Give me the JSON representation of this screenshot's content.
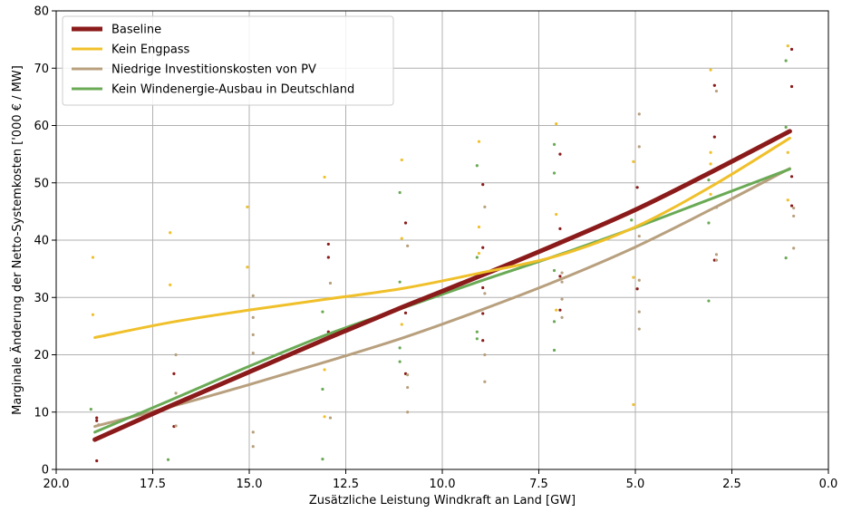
{
  "chart_data": {
    "type": "line",
    "xlabel": "Zusätzliche Leistung Windkraft an Land [GW]",
    "ylabel": "Marginale Änderung der Netto-Systemkosten ['000 € / MW]",
    "xlim": [
      20.0,
      0.0
    ],
    "ylim": [
      0,
      80
    ],
    "x_inverted": true,
    "xticks": [
      "20.0",
      "17.5",
      "15.0",
      "12.5",
      "10.0",
      "7.5",
      "5.0",
      "2.5",
      "0.0"
    ],
    "xtick_values": [
      20,
      17.5,
      15,
      12.5,
      10,
      7.5,
      5,
      2.5,
      0
    ],
    "yticks": [
      "0",
      "10",
      "20",
      "30",
      "40",
      "50",
      "60",
      "70",
      "80"
    ],
    "ytick_values": [
      0,
      10,
      20,
      30,
      40,
      50,
      60,
      70,
      80
    ],
    "grid": true,
    "legend_position": "top-left",
    "series": [
      {
        "name": "Baseline",
        "color": "#8b1a1a",
        "width": 5,
        "line": {
          "x": [
            19,
            17,
            15,
            13,
            11,
            9,
            7,
            5,
            3,
            1
          ],
          "y": [
            5.2,
            11.2,
            17.0,
            22.8,
            28.4,
            33.8,
            39.4,
            45.3,
            52.0,
            59.0
          ]
        },
        "points": [
          {
            "x": 19,
            "y": [
              1.5,
              8.5,
              9.0
            ]
          },
          {
            "x": 17,
            "y": [
              7.5,
              16.7
            ]
          },
          {
            "x": 13,
            "y": [
              24.0,
              37.0,
              39.3
            ]
          },
          {
            "x": 11,
            "y": [
              43.0,
              27.3,
              16.7
            ]
          },
          {
            "x": 9,
            "y": [
              49.7,
              38.7,
              31.7,
              22.5,
              27.2
            ]
          },
          {
            "x": 7,
            "y": [
              55.0,
              42.0,
              33.7,
              27.8
            ]
          },
          {
            "x": 5,
            "y": [
              49.2,
              31.5
            ]
          },
          {
            "x": 3,
            "y": [
              67.0,
              58.0,
              36.5
            ]
          },
          {
            "x": 1,
            "y": [
              73.3,
              66.8,
              51.1,
              46.0
            ]
          }
        ]
      },
      {
        "name": "Kein Engpass",
        "color": "#f0c02a",
        "width": 3,
        "line": {
          "x": [
            19,
            17,
            15,
            13,
            11,
            9,
            7,
            5,
            3,
            1
          ],
          "y": [
            23.0,
            25.7,
            27.8,
            29.7,
            31.6,
            34.3,
            37.3,
            42.3,
            49.5,
            57.8
          ]
        },
        "points": [
          {
            "x": 19,
            "y": [
              37.0,
              27.0
            ]
          },
          {
            "x": 17,
            "y": [
              41.3,
              32.2
            ]
          },
          {
            "x": 15,
            "y": [
              45.8,
              35.3
            ]
          },
          {
            "x": 13,
            "y": [
              51.0,
              17.4,
              9.2
            ]
          },
          {
            "x": 11,
            "y": [
              54.0,
              40.3,
              25.3
            ]
          },
          {
            "x": 9,
            "y": [
              57.2,
              42.3,
              37.7
            ]
          },
          {
            "x": 7,
            "y": [
              60.3,
              44.5,
              27.8
            ]
          },
          {
            "x": 5,
            "y": [
              53.7,
              33.5,
              11.3
            ]
          },
          {
            "x": 3,
            "y": [
              69.7,
              55.3,
              53.3,
              48.0
            ]
          },
          {
            "x": 1,
            "y": [
              73.9,
              55.3,
              47.0
            ]
          }
        ]
      },
      {
        "name": "Niedrige Investitionskosten von PV",
        "color": "#b8a07e",
        "width": 3,
        "line": {
          "x": [
            19,
            17,
            15,
            13,
            11,
            9,
            7,
            5,
            3,
            1
          ],
          "y": [
            7.5,
            11.0,
            14.8,
            18.8,
            23.0,
            27.8,
            33.0,
            38.8,
            45.5,
            52.5
          ]
        },
        "points": [
          {
            "x": 19,
            "y": [
              7.8
            ]
          },
          {
            "x": 17,
            "y": [
              20.0,
              13.3,
              7.6
            ]
          },
          {
            "x": 15,
            "y": [
              30.3,
              26.5,
              23.5,
              20.3,
              6.5,
              4.0
            ]
          },
          {
            "x": 13,
            "y": [
              32.5,
              9.0
            ]
          },
          {
            "x": 11,
            "y": [
              39.0,
              16.5,
              14.3,
              10.0
            ]
          },
          {
            "x": 9,
            "y": [
              45.8,
              30.7,
              20.0,
              15.3
            ]
          },
          {
            "x": 7,
            "y": [
              34.3,
              32.7,
              29.7,
              26.5
            ]
          },
          {
            "x": 5,
            "y": [
              62.0,
              56.3,
              40.7,
              33.0,
              27.5,
              24.5
            ]
          },
          {
            "x": 3,
            "y": [
              66.0,
              45.7,
              37.5,
              36.5
            ]
          },
          {
            "x": 1,
            "y": [
              44.2,
              38.6,
              45.6
            ]
          }
        ]
      },
      {
        "name": "Kein Windenergie-Ausbau in Deutschland",
        "color": "#6aaa55",
        "width": 3,
        "line": {
          "x": [
            19,
            17,
            15,
            13,
            11,
            9,
            7,
            5,
            3,
            1
          ],
          "y": [
            6.5,
            12.2,
            18.0,
            23.5,
            28.2,
            32.9,
            37.4,
            42.2,
            47.3,
            52.4
          ]
        },
        "points": [
          {
            "x": 19,
            "y": [
              10.5
            ]
          },
          {
            "x": 17,
            "y": [
              1.7
            ]
          },
          {
            "x": 13,
            "y": [
              27.5,
              14.0,
              1.8
            ]
          },
          {
            "x": 11,
            "y": [
              48.3,
              32.7,
              21.2,
              18.8
            ]
          },
          {
            "x": 9,
            "y": [
              53.0,
              37.0,
              24.0,
              22.8
            ]
          },
          {
            "x": 7,
            "y": [
              56.7,
              51.7,
              34.7,
              25.8,
              20.8
            ]
          },
          {
            "x": 5,
            "y": [
              43.5
            ]
          },
          {
            "x": 3,
            "y": [
              50.5,
              43.0,
              29.4
            ]
          },
          {
            "x": 1,
            "y": [
              71.3,
              59.7,
              36.9
            ]
          }
        ]
      }
    ]
  }
}
